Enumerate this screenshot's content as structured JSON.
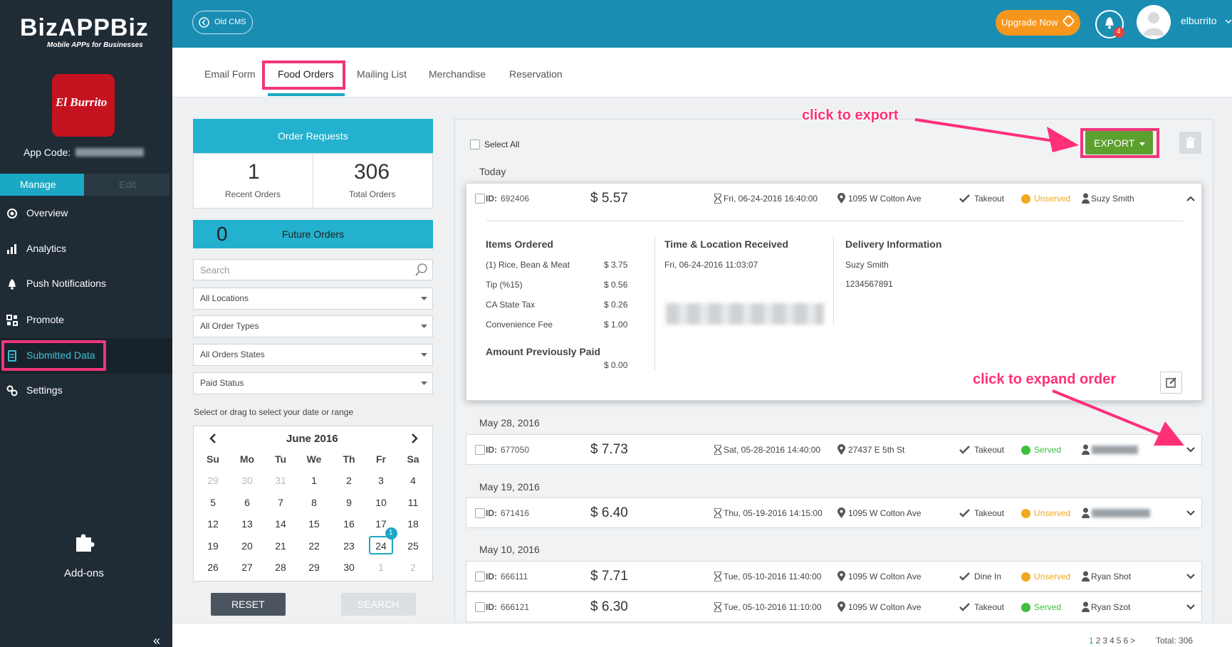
{
  "sidebar": {
    "brand": "BizAPPBiz",
    "tagline": "Mobile APPs for Businesses",
    "logo_text": "El Burrito",
    "app_code_label": "App Code:",
    "tabs": [
      "Manage",
      "Edit"
    ],
    "menu": [
      "Overview",
      "Analytics",
      "Push Notifications",
      "Promote",
      "Submitted Data",
      "Settings"
    ],
    "addons": "Add-ons",
    "collapse": "«"
  },
  "topbar": {
    "old_cms": "Old CMS",
    "upgrade": "Upgrade Now",
    "notifications": "4",
    "user": "elburrito"
  },
  "tabs": [
    "Email Form",
    "Food Orders",
    "Mailing List",
    "Merchandise",
    "Reservation"
  ],
  "filters": {
    "order_requests": "Order Requests",
    "recent_count": "1",
    "recent_label": "Recent Orders",
    "total_count": "306",
    "total_label": "Total Orders",
    "future_count": "0",
    "future_label": "Future Orders",
    "search": "Search",
    "selects": [
      "All Locations",
      "All Order Types",
      "All Orders States",
      "Paid Status"
    ],
    "date_hint": "Select or drag to select your date or range",
    "calendar": {
      "month": "June 2016",
      "weekdays": [
        "Su",
        "Mo",
        "Tu",
        "We",
        "Th",
        "Fr",
        "Sa"
      ],
      "weeks": [
        [
          "29",
          "30",
          "31",
          "1",
          "2",
          "3",
          "4"
        ],
        [
          "5",
          "6",
          "7",
          "8",
          "9",
          "10",
          "11"
        ],
        [
          "12",
          "13",
          "14",
          "15",
          "16",
          "17",
          "18"
        ],
        [
          "19",
          "20",
          "21",
          "22",
          "23",
          "24",
          "25"
        ],
        [
          "26",
          "27",
          "28",
          "29",
          "30",
          "1",
          "2"
        ]
      ],
      "badge": "1"
    },
    "reset": "RESET",
    "search_button": "SEARCH"
  },
  "orders": {
    "select_all": "Select All",
    "export": "EXPORT",
    "id_label": "ID:",
    "groups": [
      {
        "date": "Today",
        "orders": [
          {
            "id": "692406",
            "amount": "$ 5.57",
            "time": "Fri, 06-24-2016 16:40:00",
            "location": "1095 W Colton Ave",
            "type": "Takeout",
            "status": "Unserved",
            "status_color": "#f0a81e",
            "customer": "Suzy Smith"
          }
        ]
      },
      {
        "date": "May 28, 2016",
        "orders": [
          {
            "id": "677050",
            "amount": "$ 7.73",
            "time": "Sat, 05-28-2016 14:40:00",
            "location": "27437 E 5th St",
            "type": "Takeout",
            "status": "Served",
            "status_color": "#3cbf3c"
          }
        ]
      },
      {
        "date": "May 19, 2016",
        "orders": [
          {
            "id": "671416",
            "amount": "$ 6.40",
            "time": "Thu, 05-19-2016 14:15:00",
            "location": "1095 W Colton Ave",
            "type": "Takeout",
            "status": "Unserved",
            "status_color": "#f0a81e"
          }
        ]
      },
      {
        "date": "May 10, 2016",
        "orders": [
          {
            "id": "666111",
            "amount": "$ 7.71",
            "time": "Tue, 05-10-2016 11:40:00",
            "location": "1095 W Colton Ave",
            "type": "Dine In",
            "status": "Unserved",
            "status_color": "#f0a81e",
            "customer": "Ryan Shot"
          },
          {
            "id": "666121",
            "amount": "$ 6.30",
            "time": "Tue, 05-10-2016 11:10:00",
            "location": "1095 W Colton Ave",
            "type": "Takeout",
            "status": "Served",
            "status_color": "#3cbf3c",
            "customer": "Ryan Szot"
          }
        ]
      }
    ],
    "detail": {
      "items_title": "Items Ordered",
      "items": [
        [
          "(1) Rice, Bean & Meat",
          "$ 3.75"
        ],
        [
          "Tip (%15)",
          "$ 0.56"
        ],
        [
          "CA State Tax",
          "$ 0.26"
        ],
        [
          "Convenience Fee",
          "$ 1.00"
        ]
      ],
      "paid_title": "Amount Previously Paid",
      "paid": "$ 0.00",
      "time_title": "Time & Location Received",
      "time_value": "Fri, 06-24-2016 11:03:07",
      "delivery_title": "Delivery Information",
      "delivery": [
        "Suzy Smith",
        "1234567891"
      ]
    }
  },
  "annotations": [
    "click to export",
    "click to expand order"
  ],
  "pagination": {
    "pages": [
      "1",
      "2",
      "3",
      "4",
      "5",
      "6",
      ">"
    ],
    "total": "Total: 306"
  }
}
